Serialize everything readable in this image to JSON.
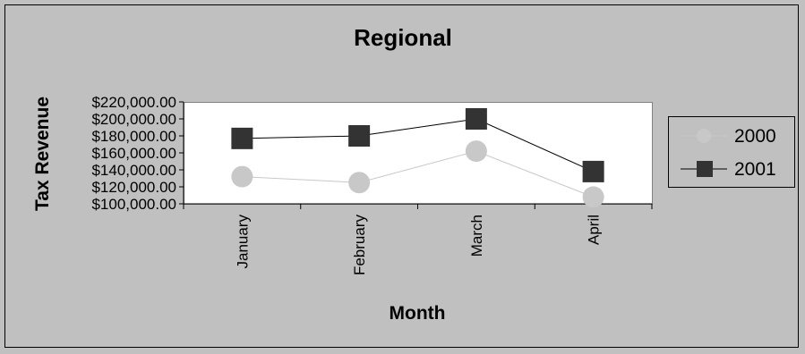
{
  "chart_data": {
    "type": "line",
    "title": "Regional",
    "xlabel": "Month",
    "ylabel": "Tax Revenue",
    "categories": [
      "January",
      "February",
      "March",
      "April"
    ],
    "ylim": [
      100000,
      220000
    ],
    "yticks": [
      100000,
      120000,
      140000,
      160000,
      180000,
      200000,
      220000
    ],
    "ytick_labels": [
      "$100,000.00",
      "$120,000.00",
      "$140,000.00",
      "$160,000.00",
      "$180,000.00",
      "$200,000.00",
      "$220,000.00"
    ],
    "grid": false,
    "legend_position": "right",
    "series": [
      {
        "name": "2000",
        "values": [
          132000,
          125000,
          162000,
          108000
        ],
        "color": "#c8c8c8",
        "line_color": "#c8c8c8",
        "marker": "circle"
      },
      {
        "name": "2001",
        "values": [
          177000,
          180000,
          200000,
          138000
        ],
        "color": "#333333",
        "line_color": "#000000",
        "marker": "square"
      }
    ],
    "colors": {
      "background": "#c0c0c0",
      "plot_area": "#ffffff",
      "border": "#000000"
    }
  }
}
